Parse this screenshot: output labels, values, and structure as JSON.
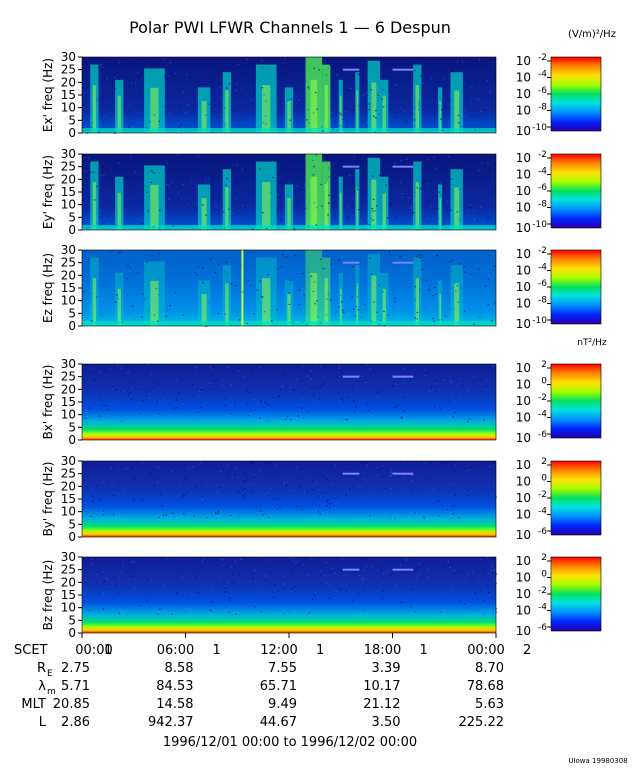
{
  "title": "Polar PWI LFWR Channels 1 — 6 Despun",
  "units_electric": "(V/m)²/Hz",
  "units_magnetic": "nT²/Hz",
  "credit": "UIowa 19980308",
  "date_range": "1996/12/01 00:00 to 1996/12/02 00:00",
  "colors": {
    "background_low": "#0a1a8c",
    "mid": "#00c8a0",
    "high": "#ff2000",
    "scale": [
      "#2a00a0",
      "#0020ff",
      "#0090ff",
      "#00e0e0",
      "#00e060",
      "#a0ff00",
      "#ffe000",
      "#ff8000",
      "#ff0000"
    ]
  },
  "time_axis": {
    "row_label": "SCET",
    "ticks": [
      "00:00",
      "06:00",
      "12:00",
      "18:00",
      "00:00"
    ],
    "day_marks": [
      "1",
      "1",
      "1",
      "1",
      "2"
    ]
  },
  "ephemeris": [
    {
      "label": "R",
      "sub": "E",
      "values": [
        "2.75",
        "8.58",
        "7.55",
        "3.39",
        "8.70"
      ]
    },
    {
      "label": "λ",
      "sub": "m",
      "values": [
        "5.71",
        "84.53",
        "65.71",
        "10.17",
        "78.68"
      ]
    },
    {
      "label": "MLT",
      "sub": "",
      "values": [
        "20.85",
        "14.58",
        "9.49",
        "21.12",
        "5.63"
      ]
    },
    {
      "label": "L",
      "sub": "",
      "values": [
        "2.86",
        "942.37",
        "44.67",
        "3.50",
        "225.22"
      ]
    }
  ],
  "chart_data": [
    {
      "type": "heatmap",
      "ylabel": "Ex' freq (Hz)",
      "ylim": [
        0,
        30
      ],
      "yticks": [
        "0",
        "5",
        "10",
        "15",
        "20",
        "25",
        "30"
      ],
      "colorbar_ticks": [
        {
          "base": "10",
          "exp": "-2"
        },
        {
          "base": "10",
          "exp": "-4"
        },
        {
          "base": "10",
          "exp": "-6"
        },
        {
          "base": "10",
          "exp": "-8"
        },
        {
          "base": "10",
          "exp": "-10"
        }
      ]
    },
    {
      "type": "heatmap",
      "ylabel": "Ey' freq (Hz)",
      "ylim": [
        0,
        30
      ],
      "yticks": [
        "0",
        "5",
        "10",
        "15",
        "20",
        "25",
        "30"
      ],
      "colorbar_ticks": [
        {
          "base": "10",
          "exp": "-2"
        },
        {
          "base": "10",
          "exp": "-4"
        },
        {
          "base": "10",
          "exp": "-6"
        },
        {
          "base": "10",
          "exp": "-8"
        },
        {
          "base": "10",
          "exp": "-10"
        }
      ]
    },
    {
      "type": "heatmap",
      "ylabel": "Ez freq (Hz)",
      "ylim": [
        0,
        30
      ],
      "yticks": [
        "0",
        "5",
        "10",
        "15",
        "20",
        "25",
        "30"
      ],
      "colorbar_ticks": [
        {
          "base": "10",
          "exp": "-2"
        },
        {
          "base": "10",
          "exp": "-4"
        },
        {
          "base": "10",
          "exp": "-6"
        },
        {
          "base": "10",
          "exp": "-8"
        },
        {
          "base": "10",
          "exp": "-10"
        }
      ]
    },
    {
      "type": "heatmap",
      "ylabel": "Bx' freq (Hz)",
      "ylim": [
        0,
        30
      ],
      "yticks": [
        "0",
        "5",
        "10",
        "15",
        "20",
        "25",
        "30"
      ],
      "colorbar_ticks": [
        {
          "base": "10",
          "exp": "2"
        },
        {
          "base": "10",
          "exp": "0"
        },
        {
          "base": "10",
          "exp": "-2"
        },
        {
          "base": "10",
          "exp": "-4"
        },
        {
          "base": "10",
          "exp": "-6"
        }
      ]
    },
    {
      "type": "heatmap",
      "ylabel": "By' freq (Hz)",
      "ylim": [
        0,
        30
      ],
      "yticks": [
        "0",
        "5",
        "10",
        "15",
        "20",
        "25",
        "30"
      ],
      "colorbar_ticks": [
        {
          "base": "10",
          "exp": "2"
        },
        {
          "base": "10",
          "exp": "0"
        },
        {
          "base": "10",
          "exp": "-2"
        },
        {
          "base": "10",
          "exp": "-4"
        },
        {
          "base": "10",
          "exp": "-6"
        }
      ]
    },
    {
      "type": "heatmap",
      "ylabel": "Bz freq (Hz)",
      "ylim": [
        0,
        30
      ],
      "yticks": [
        "0",
        "5",
        "10",
        "15",
        "20",
        "25",
        "30"
      ],
      "colorbar_ticks": [
        {
          "base": "10",
          "exp": "2"
        },
        {
          "base": "10",
          "exp": "0"
        },
        {
          "base": "10",
          "exp": "-2"
        },
        {
          "base": "10",
          "exp": "-4"
        },
        {
          "base": "10",
          "exp": "-6"
        }
      ]
    }
  ]
}
